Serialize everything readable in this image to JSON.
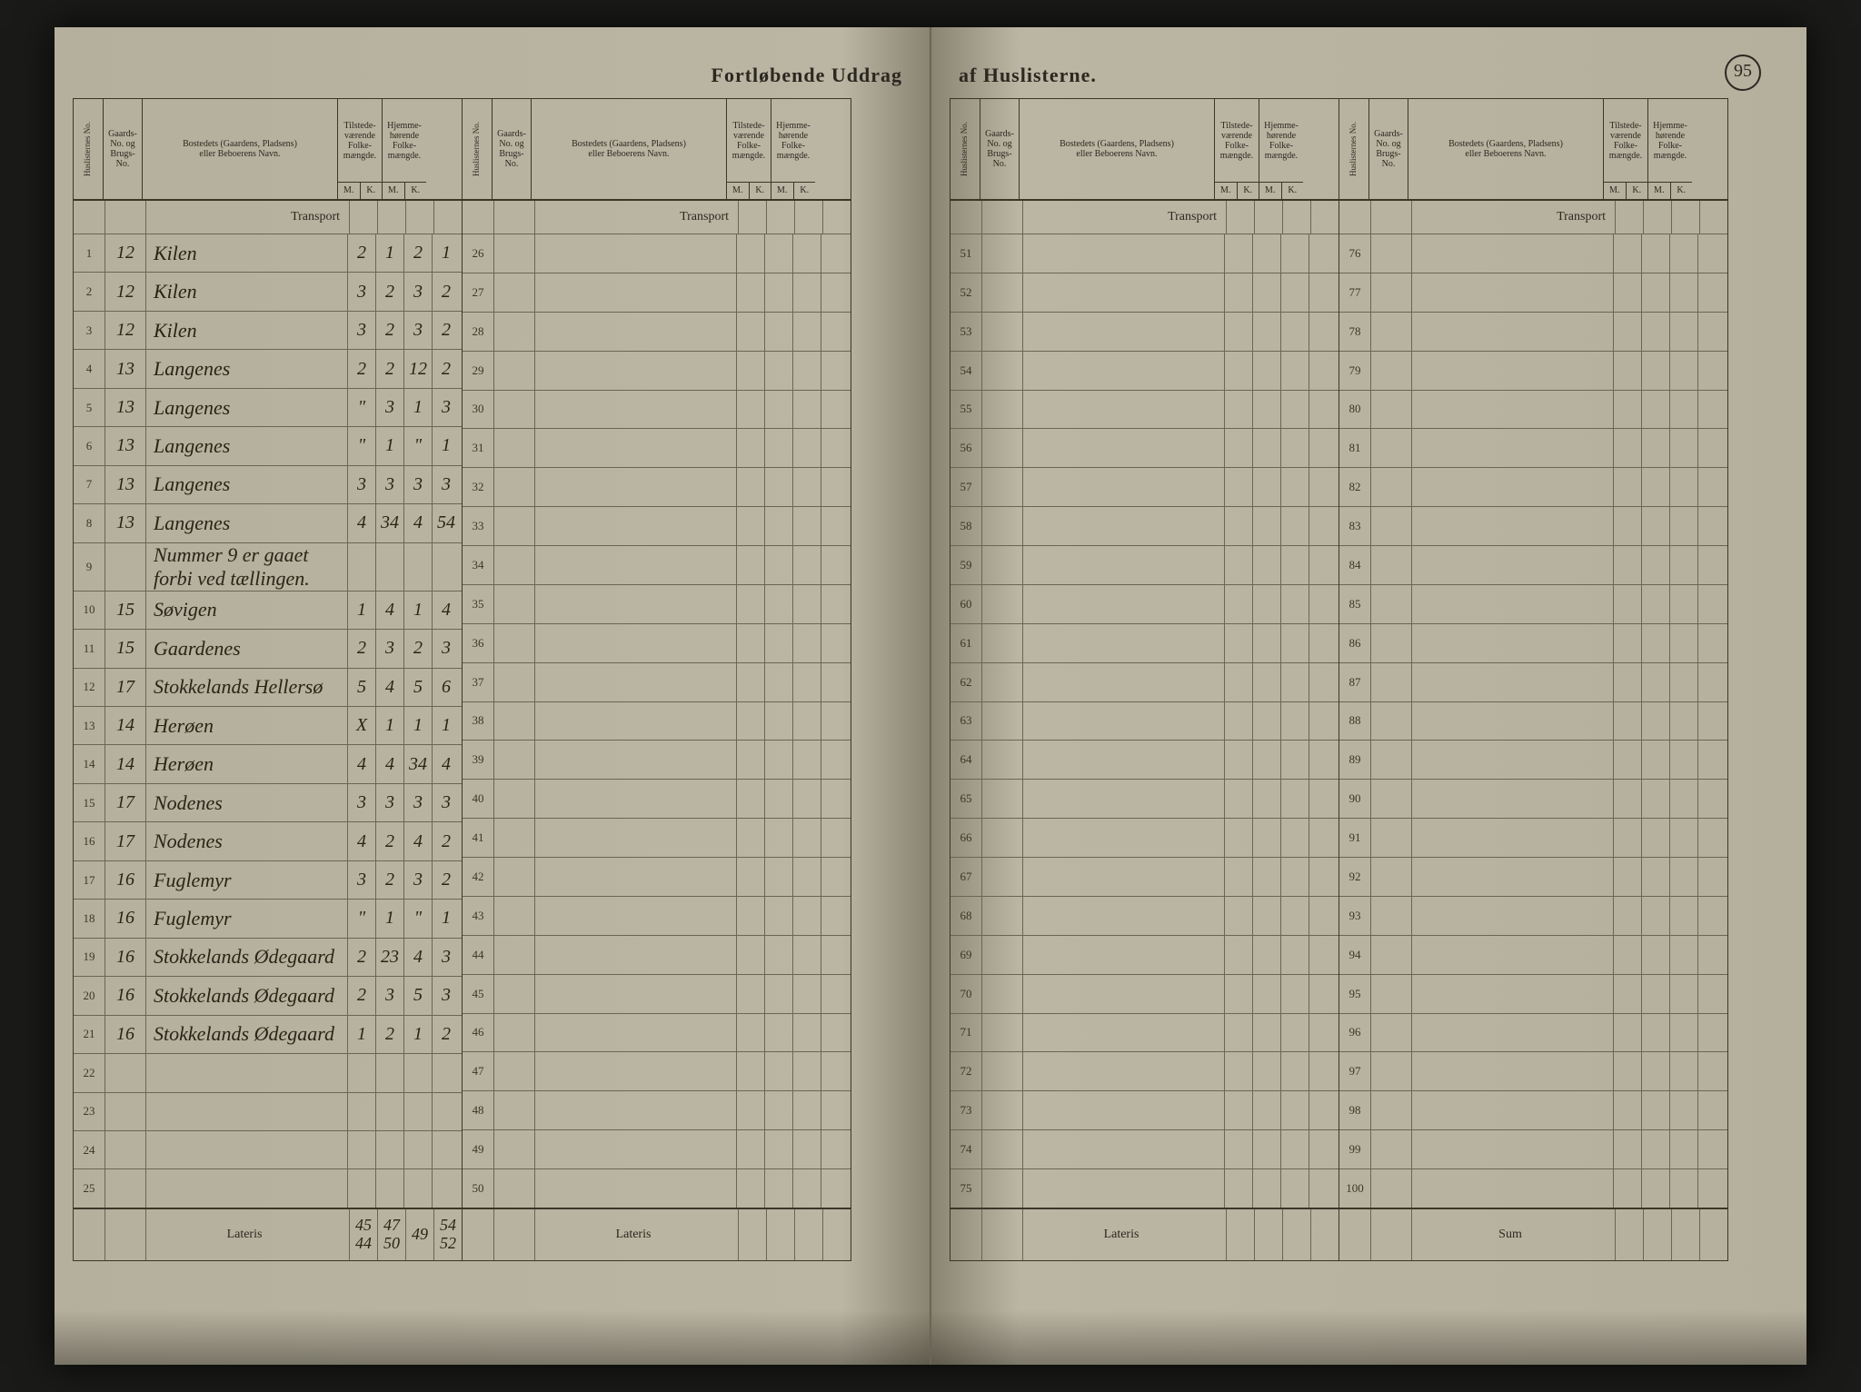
{
  "title_left": "Fortløbende Uddrag",
  "title_right": "af Huslisterne.",
  "page_number": "95",
  "headers": {
    "huslisternes": "Huslisternes\nNo.",
    "gaards": "Gaards-\nNo. og\nBrugs-\nNo.",
    "bostedets": "Bostedets (Gaardens, Pladsens)\neller Beboerens Navn.",
    "tilstede": "Tilstede-\nværende\nFolke-\nmængde.",
    "hjemme": "Hjemme-\nhørende\nFolke-\nmængde.",
    "m": "M.",
    "k": "K."
  },
  "transport": "Transport",
  "lateris": "Lateris",
  "sum": "Sum",
  "rows_b1": [
    {
      "n": "1",
      "g": "12",
      "name": "Kilen",
      "tm": "2",
      "tk": "1",
      "hm": "2",
      "hk": "1"
    },
    {
      "n": "2",
      "g": "12",
      "name": "Kilen",
      "tm": "3",
      "tk": "2",
      "hm": "3",
      "hk": "2"
    },
    {
      "n": "3",
      "g": "12",
      "name": "Kilen",
      "tm": "3",
      "tk": "2",
      "hm": "3",
      "hk": "2"
    },
    {
      "n": "4",
      "g": "13",
      "name": "Langenes",
      "tm": "2",
      "tk": "2",
      "hm": "12",
      "hk": "2"
    },
    {
      "n": "5",
      "g": "13",
      "name": "Langenes",
      "tm": "\"",
      "tk": "3",
      "hm": "1",
      "hk": "3"
    },
    {
      "n": "6",
      "g": "13",
      "name": "Langenes",
      "tm": "\"",
      "tk": "1",
      "hm": "\"",
      "hk": "1"
    },
    {
      "n": "7",
      "g": "13",
      "name": "Langenes",
      "tm": "3",
      "tk": "3",
      "hm": "3",
      "hk": "3"
    },
    {
      "n": "8",
      "g": "13",
      "name": "Langenes",
      "tm": "4",
      "tk": "34",
      "hm": "4",
      "hk": "54"
    },
    {
      "n": "9",
      "g": "",
      "name": "Nummer 9 er gaaet forbi ved tællingen.",
      "tm": "",
      "tk": "",
      "hm": "",
      "hk": ""
    },
    {
      "n": "10",
      "g": "15",
      "name": "Søvigen",
      "tm": "1",
      "tk": "4",
      "hm": "1",
      "hk": "4"
    },
    {
      "n": "11",
      "g": "15",
      "name": "Gaardenes",
      "tm": "2",
      "tk": "3",
      "hm": "2",
      "hk": "3"
    },
    {
      "n": "12",
      "g": "17",
      "name": "Stokkelands Hellersø",
      "tm": "5",
      "tk": "4",
      "hm": "5",
      "hk": "6"
    },
    {
      "n": "13",
      "g": "14",
      "name": "Herøen",
      "tm": "X",
      "tk": "1",
      "hm": "1",
      "hk": "1"
    },
    {
      "n": "14",
      "g": "14",
      "name": "Herøen",
      "tm": "4",
      "tk": "4",
      "hm": "34",
      "hk": "4"
    },
    {
      "n": "15",
      "g": "17",
      "name": "Nodenes",
      "tm": "3",
      "tk": "3",
      "hm": "3",
      "hk": "3"
    },
    {
      "n": "16",
      "g": "17",
      "name": "Nodenes",
      "tm": "4",
      "tk": "2",
      "hm": "4",
      "hk": "2"
    },
    {
      "n": "17",
      "g": "16",
      "name": "Fuglemyr",
      "tm": "3",
      "tk": "2",
      "hm": "3",
      "hk": "2"
    },
    {
      "n": "18",
      "g": "16",
      "name": "Fuglemyr",
      "tm": "\"",
      "tk": "1",
      "hm": "\"",
      "hk": "1"
    },
    {
      "n": "19",
      "g": "16",
      "name": "Stokkelands Ødegaard",
      "tm": "2",
      "tk": "23",
      "hm": "4",
      "hk": "3"
    },
    {
      "n": "20",
      "g": "16",
      "name": "Stokkelands Ødegaard",
      "tm": "2",
      "tk": "3",
      "hm": "5",
      "hk": "3"
    },
    {
      "n": "21",
      "g": "16",
      "name": "Stokkelands Ødegaard",
      "tm": "1",
      "tk": "2",
      "hm": "1",
      "hk": "2"
    },
    {
      "n": "22",
      "g": "",
      "name": "",
      "tm": "",
      "tk": "",
      "hm": "",
      "hk": ""
    },
    {
      "n": "23",
      "g": "",
      "name": "",
      "tm": "",
      "tk": "",
      "hm": "",
      "hk": ""
    },
    {
      "n": "24",
      "g": "",
      "name": "",
      "tm": "",
      "tk": "",
      "hm": "",
      "hk": ""
    },
    {
      "n": "25",
      "g": "",
      "name": "",
      "tm": "",
      "tk": "",
      "hm": "",
      "hk": ""
    }
  ],
  "lateris_b1": {
    "tm": "45\n44",
    "tk": "47\n50",
    "hm": "49",
    "hk": "54\n52"
  },
  "b2_start": 26,
  "b3_start": 51,
  "b4_start": 76,
  "colors": {
    "paper": "#bbb5a3",
    "ink": "#2a2820",
    "line": "#3a3628",
    "hand": "#2a2418"
  }
}
